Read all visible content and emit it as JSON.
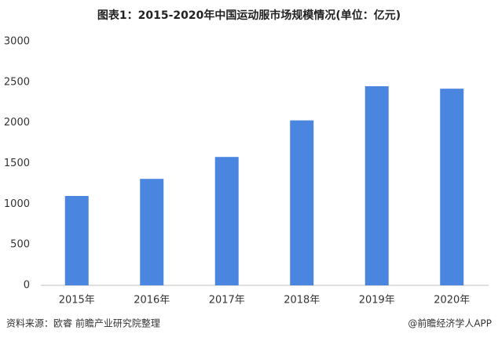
{
  "chart_data": {
    "type": "bar",
    "title": "图表1：2015-2020年中国运动服市场规模情况(单位：亿元)",
    "categories": [
      "2015年",
      "2016年",
      "2017年",
      "2018年",
      "2019年",
      "2020年"
    ],
    "values": [
      1100,
      1310,
      1580,
      2030,
      2450,
      2420
    ],
    "color": "#4a86e0",
    "ylim": [
      0,
      3000
    ],
    "yticks": [
      0,
      500,
      1000,
      1500,
      2000,
      2500,
      3000
    ],
    "grid": false,
    "source": "资料来源：欧睿 前瞻产业研究院整理",
    "credit": "@前瞻经济学人APP"
  }
}
